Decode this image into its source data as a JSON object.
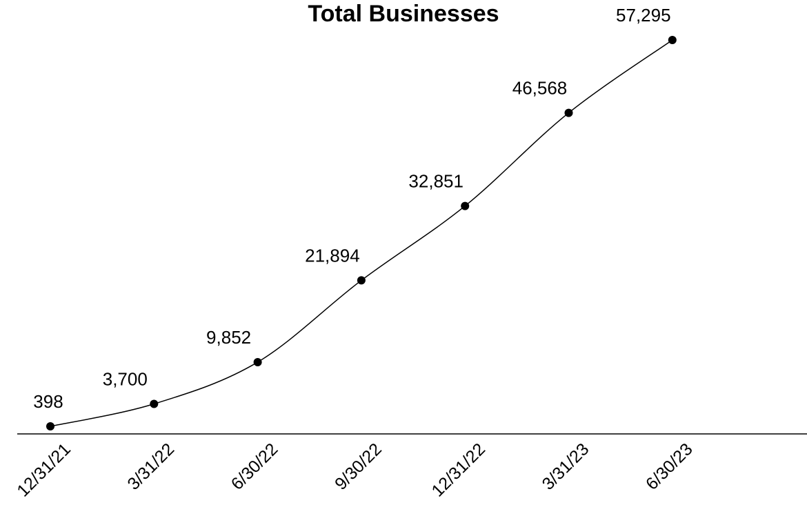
{
  "chart_data": {
    "type": "line",
    "title": "Total Businesses",
    "categories": [
      "12/31/21",
      "3/31/22",
      "6/30/22",
      "9/30/22",
      "12/31/22",
      "3/31/23",
      "6/30/23"
    ],
    "values": [
      398,
      3700,
      9852,
      21894,
      32851,
      46568,
      57295
    ],
    "value_labels": [
      "398",
      "3,700",
      "9,852",
      "21,894",
      "32,851",
      "46,568",
      "57,295"
    ],
    "color": "#000000",
    "smooth": true
  }
}
